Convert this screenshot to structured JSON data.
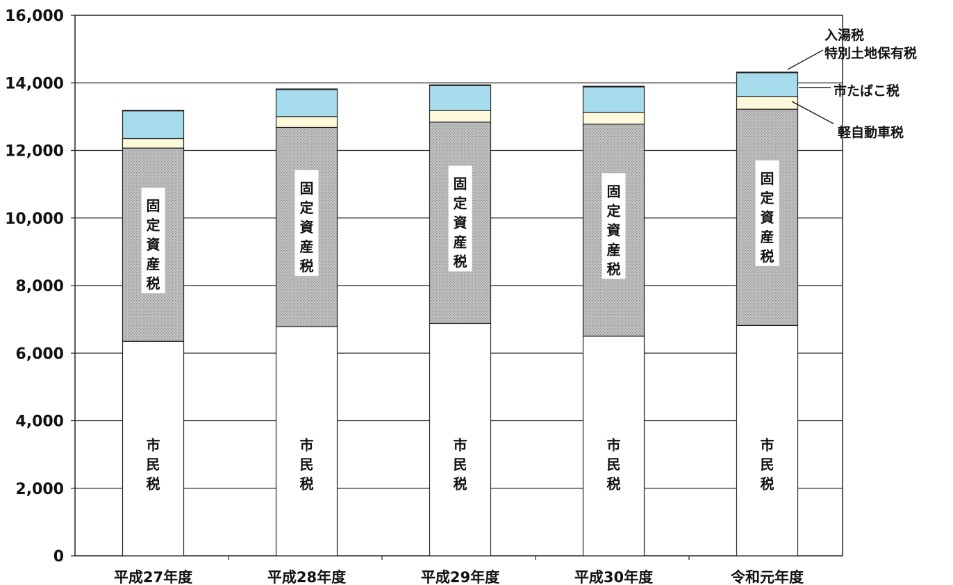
{
  "chart_data": {
    "type": "bar",
    "stacked": true,
    "categories": [
      "平成27年度",
      "平成28年度",
      "平成29年度",
      "平成30年度",
      "令和元年度"
    ],
    "series": [
      {
        "name": "市民税",
        "values": [
          6350,
          6780,
          6880,
          6500,
          6820
        ],
        "color": "#ffffff",
        "label_chars": [
          "市",
          "民",
          "税"
        ]
      },
      {
        "name": "固定資産税",
        "values": [
          5720,
          5900,
          5960,
          6280,
          6400
        ],
        "color": "#bdbdbd",
        "label_chars": [
          "固",
          "定",
          "資",
          "産",
          "税"
        ]
      },
      {
        "name": "軽自動車税",
        "values": [
          280,
          320,
          340,
          350,
          380
        ],
        "color": "#fff9dc"
      },
      {
        "name": "市たばこ税",
        "values": [
          820,
          800,
          740,
          750,
          700
        ],
        "color": "#a7dcec"
      },
      {
        "name": "入湯税 特別土地保有税",
        "values": [
          20,
          20,
          20,
          20,
          20
        ],
        "color": "#a7dcec"
      }
    ],
    "legend_labels": {
      "nyuto": "入湯税",
      "tokubetsu": "特別土地保有税",
      "tabako": "市たばこ税",
      "keijidosha": "軽自動車税"
    },
    "yticks": [
      "0",
      "2,000",
      "4,000",
      "6,000",
      "8,000",
      "10,000",
      "12,000",
      "14,000",
      "16,000"
    ],
    "ylim": [
      0,
      16000
    ],
    "grid": true,
    "legend_position": "right"
  }
}
